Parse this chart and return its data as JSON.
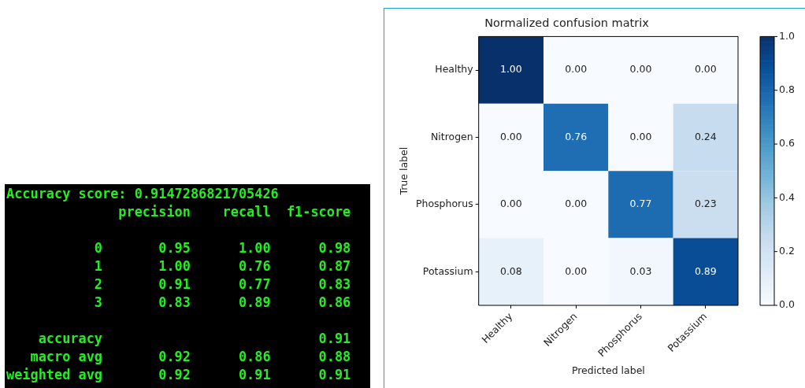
{
  "chart_data": [
    {
      "type": "other",
      "title": "Accuracy score: 0.9147286821705426",
      "annotations": [
        "              precision    recall  f1-score",
        "           0       0.95      1.00      0.98",
        "           1       1.00      0.76      0.87",
        "           2       0.91      0.77      0.83",
        "           3       0.83      0.89      0.86",
        "    accuracy                           0.91",
        "   macro avg       0.92      0.86      0.88",
        "weighted avg       0.92      0.91      0.91"
      ]
    },
    {
      "type": "heatmap",
      "title": "Normalized confusion matrix",
      "xlabel": "Predicted label",
      "ylabel": "True label",
      "categories": [
        "Healthy",
        "Nitrogen",
        "Phosphorus",
        "Potassium"
      ],
      "y_categories": [
        "Healthy",
        "Nitrogen",
        "Phosphorus",
        "Potassium"
      ],
      "cells": [
        [
          1.0,
          0.0,
          0.0,
          0.0
        ],
        [
          0.0,
          0.76,
          0.0,
          0.24
        ],
        [
          0.0,
          0.0,
          0.77,
          0.23
        ],
        [
          0.08,
          0.0,
          0.03,
          0.89
        ]
      ],
      "cell_labels": [
        [
          "1.00",
          "0.00",
          "0.00",
          "0.00"
        ],
        [
          "0.00",
          "0.76",
          "0.00",
          "0.24"
        ],
        [
          "0.00",
          "0.00",
          "0.77",
          "0.23"
        ],
        [
          "0.08",
          "0.00",
          "0.03",
          "0.89"
        ]
      ],
      "clim": [
        0,
        1
      ],
      "cticks": [
        {
          "value": 0,
          "label": "0.0"
        },
        {
          "value": 0.2,
          "label": "0.2"
        },
        {
          "value": 0.4,
          "label": "0.4"
        },
        {
          "value": 0.6,
          "label": "0.6"
        },
        {
          "value": 0.8,
          "label": "0.8"
        },
        {
          "value": 1,
          "label": "1.0"
        }
      ],
      "grid": false
    }
  ]
}
